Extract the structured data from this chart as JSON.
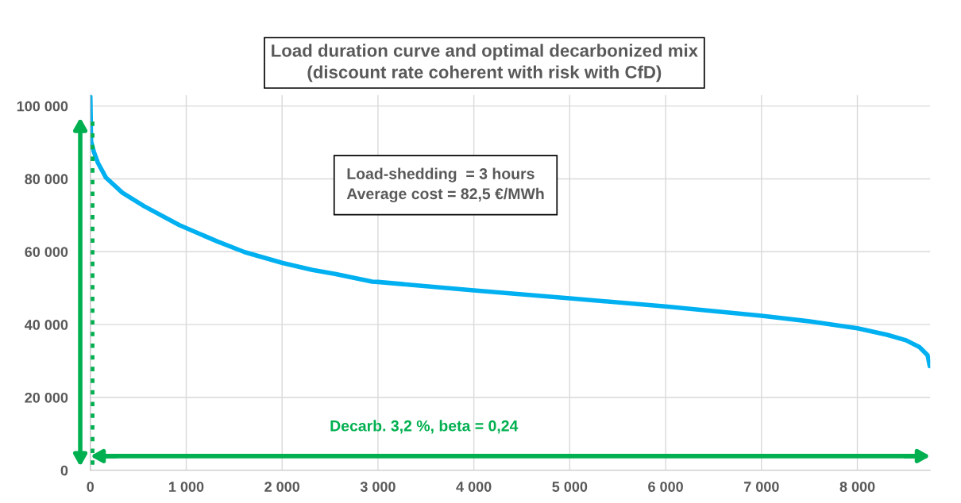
{
  "chart_data": {
    "type": "line",
    "title": "Load duration curve and optimal decarbonized mix\n(discount rate coherent with risk with CfD)",
    "x": [
      0,
      8,
      37,
      79,
      164,
      334,
      561,
      929,
      1326,
      1609,
      2006,
      2317,
      2552,
      2940,
      3000,
      4000,
      5000,
      6000,
      7000,
      7500,
      8000,
      8310,
      8507,
      8648,
      8732,
      8755
    ],
    "series": [
      {
        "color": "#00b0f0",
        "values": [
          102600,
          90300,
          87400,
          84400,
          80300,
          76200,
          72500,
          67300,
          62800,
          59900,
          56900,
          55000,
          53900,
          51800,
          51700,
          49400,
          47200,
          45000,
          42400,
          40900,
          39000,
          37200,
          35700,
          33800,
          31600,
          28600
        ]
      }
    ],
    "xlim": [
      0,
      8760
    ],
    "ylim": [
      0,
      103000
    ],
    "xticks": [
      0,
      {
        "value": 1000,
        "label": "1 000"
      },
      {
        "value": 2000,
        "label": "2 000"
      },
      {
        "value": 3000,
        "label": "3 000"
      },
      {
        "value": 4000,
        "label": "4 000"
      },
      {
        "value": 5000,
        "label": "5 000"
      },
      {
        "value": 6000,
        "label": "6 000"
      },
      {
        "value": 7000,
        "label": "7 000"
      },
      {
        "value": 8000,
        "label": "8 000"
      }
    ],
    "yticks": [
      0,
      {
        "value": 20000,
        "label": "20 000"
      },
      {
        "value": 40000,
        "label": "40 000"
      },
      {
        "value": 60000,
        "label": "60 000"
      },
      {
        "value": 80000,
        "label": "80 000"
      },
      {
        "value": 100000,
        "label": "100 000"
      }
    ],
    "grid": true,
    "marker": "none",
    "line_style": "solid",
    "ref_lines": [
      {
        "axis": "x",
        "value": 20,
        "color": "#00b050",
        "line_style": "dotted"
      },
      {
        "axis": "y",
        "value": 3900,
        "color": "#00b050",
        "line_style": "solid"
      }
    ],
    "annotations": [
      "Load-shedding  = 3 hours\nAverage cost = 82,5 €/MWh",
      "Decarb. 3,2 %, beta = 0,24"
    ]
  }
}
